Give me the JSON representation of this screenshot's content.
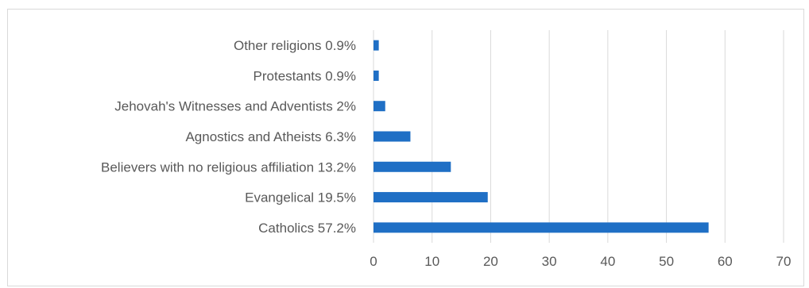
{
  "chart_data": {
    "type": "bar",
    "orientation": "horizontal",
    "title": "",
    "xlabel": "",
    "ylabel": "",
    "categories": [
      "Catholics 57.2%",
      "Evangelical 19.5%",
      "Believers with no religious affiliation 13.2%",
      "Agnostics and Atheists 6.3%",
      "Jehovah's Witnesses and Adventists 2%",
      "Protestants 0.9%",
      "Other religions 0.9%"
    ],
    "values": [
      57.2,
      19.5,
      13.2,
      6.3,
      2,
      0.9,
      0.9
    ],
    "xlim": [
      0,
      70
    ],
    "xticks": [
      "0",
      "10",
      "20",
      "30",
      "40",
      "50",
      "60",
      "70"
    ],
    "grid": "vertical",
    "legend": "none",
    "colors": {
      "bar": "#1f6fc5",
      "grid": "#d9d9d9",
      "text": "#595959",
      "frame": "#d9d9d9"
    }
  }
}
